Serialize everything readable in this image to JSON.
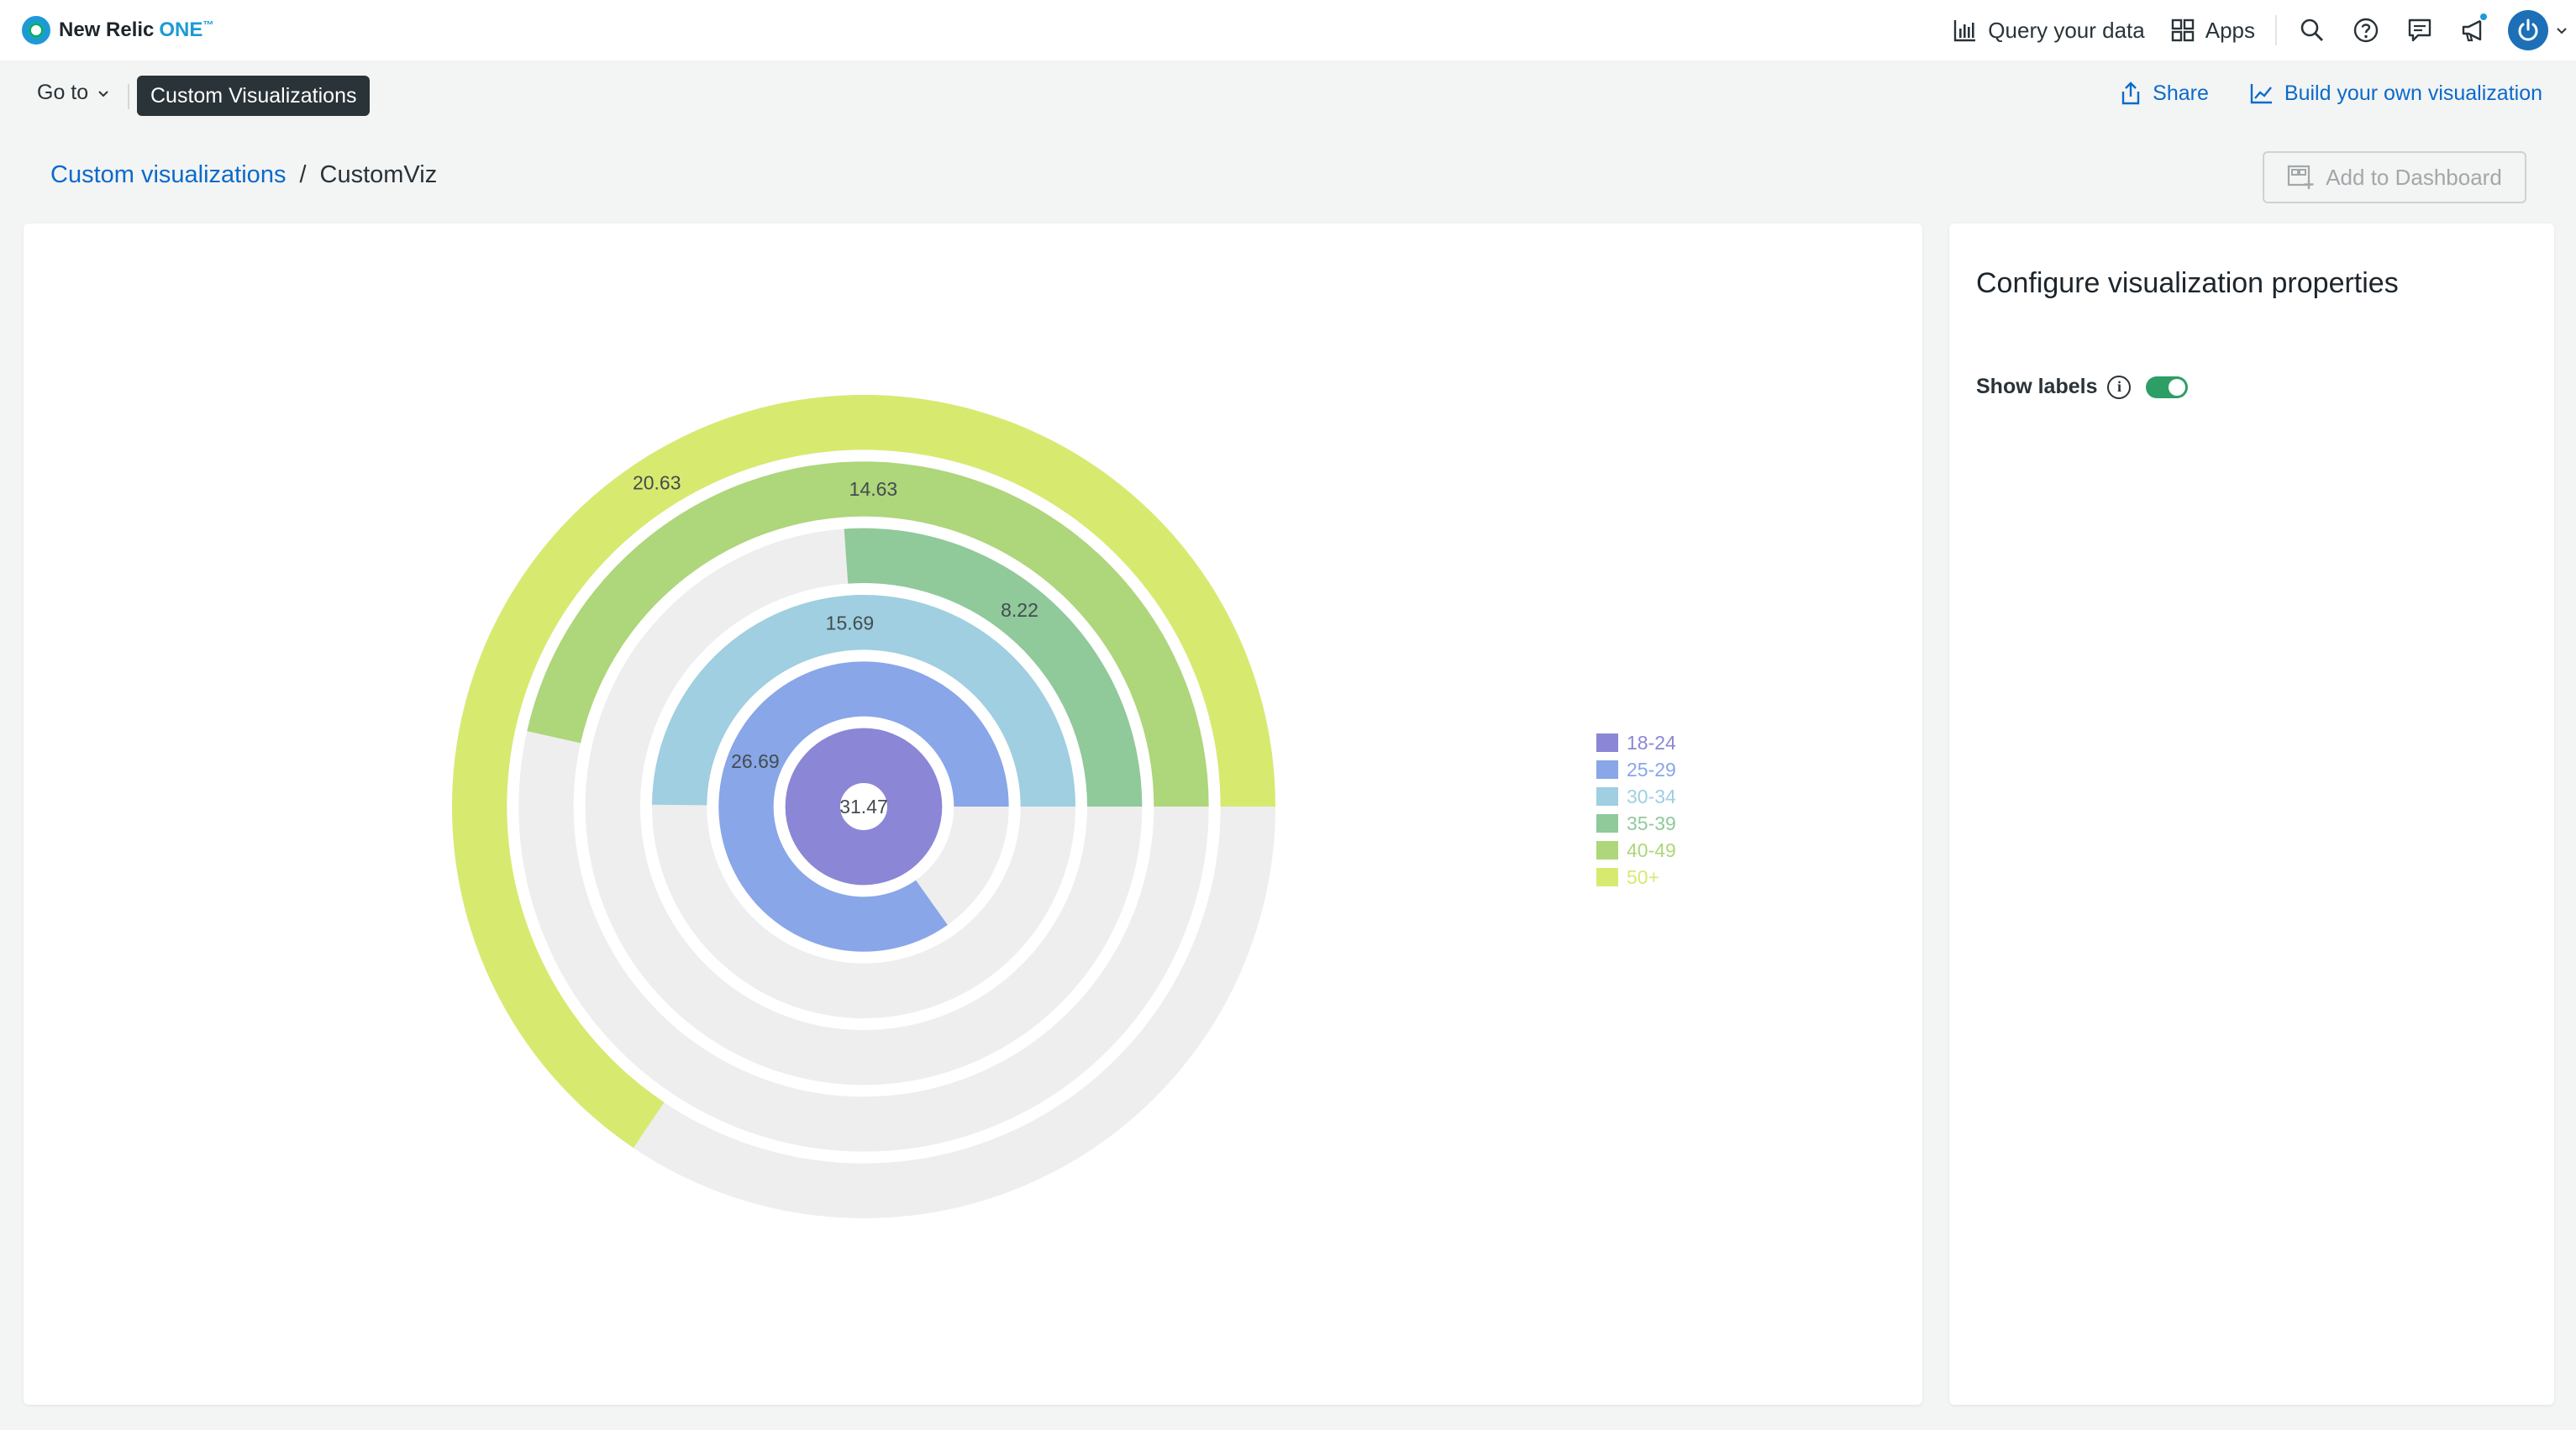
{
  "app": {
    "logo_text": "New Relic",
    "logo_one": "ONE",
    "logo_tm": "™"
  },
  "topbar": {
    "query_label": "Query your data",
    "apps_label": "Apps",
    "icons": [
      "search-icon",
      "help-icon",
      "feedback-icon",
      "announcement-icon",
      "user-avatar"
    ]
  },
  "subnav": {
    "goto_label": "Go to",
    "active_label": "Custom Visualizations",
    "share_label": "Share",
    "build_label": "Build your own visualization"
  },
  "breadcrumb": {
    "parent": "Custom visualizations",
    "separator": "/",
    "current": "CustomViz"
  },
  "add_to_dashboard_label": "Add to Dashboard",
  "config": {
    "title": "Configure visualization properties",
    "show_labels_label": "Show labels",
    "show_labels_on": true
  },
  "chart_data": {
    "type": "radial-bar",
    "scale_max": 31.47,
    "track_color": "#eeeeee",
    "series": [
      {
        "name": "18-24",
        "value": 31.47,
        "color": "#8b86d6"
      },
      {
        "name": "25-29",
        "value": 26.69,
        "color": "#88a6e8"
      },
      {
        "name": "30-34",
        "value": 15.69,
        "color": "#9fcfe0"
      },
      {
        "name": "35-39",
        "value": 8.22,
        "color": "#90c99a"
      },
      {
        "name": "40-49",
        "value": 14.63,
        "color": "#aed67a"
      },
      {
        "name": "50+",
        "value": 20.63,
        "color": "#d7ea6f"
      }
    ],
    "legend_position": "right"
  }
}
